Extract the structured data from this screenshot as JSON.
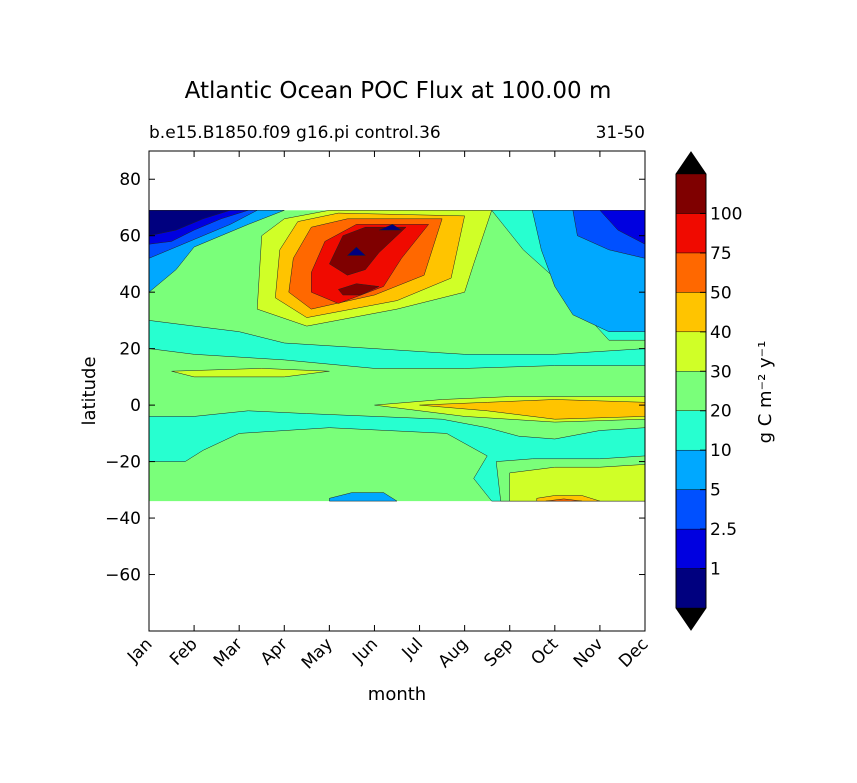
{
  "chart_data": {
    "type": "contour",
    "title": "Atlantic Ocean POC Flux at 100.00 m",
    "subtitle_left": "b.e15.B1850.f09 g16.pi control.36",
    "subtitle_right": "31-50",
    "xlabel": "month",
    "ylabel": "latitude",
    "x_ticks": [
      "Jan",
      "Feb",
      "Mar",
      "Apr",
      "May",
      "Jun",
      "Jul",
      "Aug",
      "Sep",
      "Oct",
      "Nov",
      "Dec"
    ],
    "xlim": [
      0,
      11
    ],
    "ylim": [
      -80,
      90
    ],
    "y_ticks": [
      80,
      60,
      40,
      20,
      0,
      -20,
      -40,
      -60
    ],
    "data_lat_range": [
      -34,
      69
    ],
    "colorbar": {
      "label": "g C m⁻² y⁻¹",
      "levels": [
        0,
        1,
        2.5,
        5,
        10,
        20,
        30,
        40,
        50,
        75,
        100
      ],
      "tick_labels": [
        "1",
        "2.5",
        "5",
        "10",
        "20",
        "30",
        "40",
        "50",
        "75",
        "100"
      ],
      "extend": "both",
      "colors": [
        "#00007f",
        "#0000e0",
        "#0050ff",
        "#00a8ff",
        "#27ffd0",
        "#7aff7a",
        "#d0ff27",
        "#ffc400",
        "#ff6800",
        "#f00a00",
        "#7f0000"
      ],
      "over_color": "#000000",
      "under_color": "#000000"
    },
    "regions": [
      {
        "name": "background",
        "level_index": 5
      },
      {
        "name": "tropical-central",
        "level_index": 4
      },
      {
        "name": "north-subtropical",
        "level_index": 4
      },
      {
        "name": "north-atlantic-bloom",
        "level_index": 6,
        "lat_range": [
          28,
          68
        ],
        "months": [
          "Mar",
          "Aug"
        ]
      },
      {
        "name": "bloom-core",
        "level_index": 8,
        "lat_range": [
          36,
          66
        ],
        "months": [
          "Apr",
          "Jul"
        ]
      },
      {
        "name": "bloom-peak",
        "level_index": 10,
        "lat_range": [
          48,
          64
        ],
        "months": [
          "May",
          "Jun"
        ]
      },
      {
        "name": "winter-high-latitude",
        "level_index": 0,
        "lat_range": [
          58,
          69
        ],
        "months": [
          "Jan",
          "Feb"
        ]
      },
      {
        "name": "autumn-high-latitude",
        "level_index": 3,
        "lat_range": [
          23,
          69
        ],
        "months": [
          "Sep",
          "Dec"
        ]
      },
      {
        "name": "equatorial-autumn",
        "level_index": 7,
        "lat_range": [
          -5,
          3
        ],
        "months": [
          "Aug",
          "Dec"
        ]
      },
      {
        "name": "south-subtropical-spring",
        "level_index": 6,
        "lat_range": [
          -34,
          -20
        ],
        "months": [
          "Sep",
          "Dec"
        ]
      }
    ]
  }
}
